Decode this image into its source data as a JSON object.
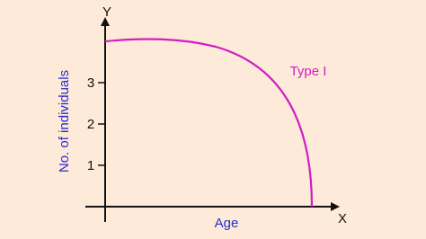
{
  "axes": {
    "y_letter": "Y",
    "x_letter": "X",
    "y_label": "No. of individuals",
    "x_label": "Age",
    "y_tick_labels": [
      "3",
      "2",
      "1"
    ]
  },
  "curve": {
    "label": "Type I"
  }
}
